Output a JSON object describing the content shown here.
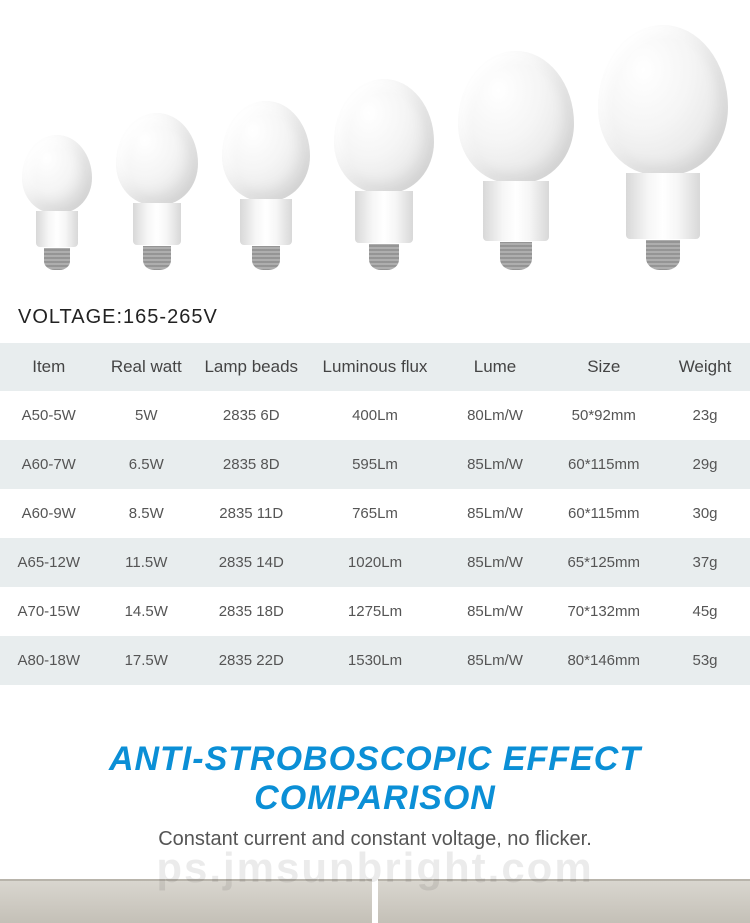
{
  "voltage_label": "VOLTAGE:165-265V",
  "bulbs": [
    {
      "glass_w": 70,
      "glass_h": 78,
      "neck_w": 42,
      "neck_h": 36,
      "base_w": 26,
      "base_h": 22
    },
    {
      "glass_w": 82,
      "glass_h": 92,
      "neck_w": 48,
      "neck_h": 42,
      "base_w": 28,
      "base_h": 24
    },
    {
      "glass_w": 88,
      "glass_h": 100,
      "neck_w": 52,
      "neck_h": 46,
      "base_w": 28,
      "base_h": 24
    },
    {
      "glass_w": 100,
      "glass_h": 114,
      "neck_w": 58,
      "neck_h": 52,
      "base_w": 30,
      "base_h": 26
    },
    {
      "glass_w": 116,
      "glass_h": 132,
      "neck_w": 66,
      "neck_h": 60,
      "base_w": 32,
      "base_h": 28
    },
    {
      "glass_w": 130,
      "glass_h": 150,
      "neck_w": 74,
      "neck_h": 66,
      "base_w": 34,
      "base_h": 30
    }
  ],
  "table": {
    "columns": [
      "Item",
      "Real watt",
      "Lamp beads",
      "Luminous flux",
      "Lume",
      "Size",
      "Weight"
    ],
    "col_widths": [
      "13%",
      "13%",
      "15%",
      "18%",
      "14%",
      "15%",
      "12%"
    ],
    "rows": [
      [
        "A50-5W",
        "5W",
        "2835 6D",
        "400Lm",
        "80Lm/W",
        "50*92mm",
        "23g"
      ],
      [
        "A60-7W",
        "6.5W",
        "2835 8D",
        "595Lm",
        "85Lm/W",
        "60*115mm",
        "29g"
      ],
      [
        "A60-9W",
        "8.5W",
        "2835 11D",
        "765Lm",
        "85Lm/W",
        "60*115mm",
        "30g"
      ],
      [
        "A65-12W",
        "11.5W",
        "2835 14D",
        "1020Lm",
        "85Lm/W",
        "65*125mm",
        "37g"
      ],
      [
        "A70-15W",
        "14.5W",
        "2835 18D",
        "1275Lm",
        "85Lm/W",
        "70*132mm",
        "45g"
      ],
      [
        "A80-18W",
        "17.5W",
        "2835 22D",
        "1530Lm",
        "85Lm/W",
        "80*146mm",
        "53g"
      ]
    ]
  },
  "section": {
    "title": "ANTI-STROBOSCOPIC EFFECT COMPARISON",
    "subtitle": "Constant current and constant voltage, no flicker."
  },
  "colors": {
    "header_bg": "#e8edee",
    "row_alt_bg": "#e8edee",
    "title_color": "#0b8fd6",
    "text_color": "#555555"
  },
  "watermark": "ps.jmsunbright.com"
}
